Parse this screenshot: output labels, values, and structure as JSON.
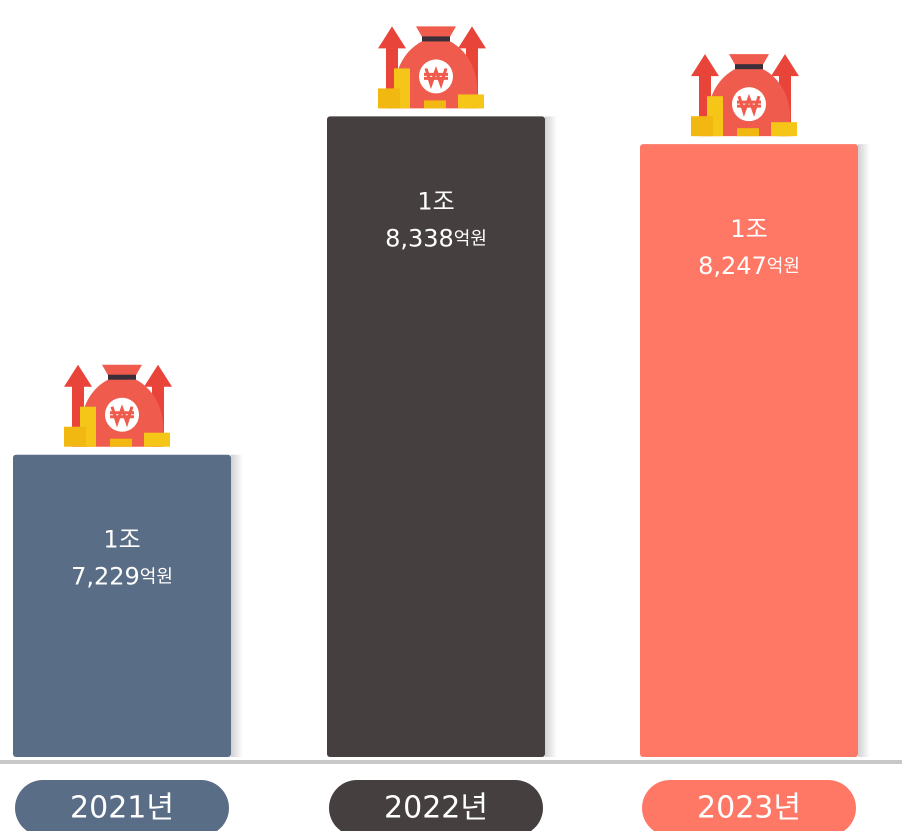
{
  "chart_data": {
    "type": "bar",
    "categories": [
      "2021년",
      "2022년",
      "2023년"
    ],
    "values": [
      17229,
      18338,
      18247
    ],
    "value_labels": [
      "1조 7,229억원",
      "1조 8,338억원",
      "1조 8,247억원"
    ],
    "colors": [
      "#5a6d86",
      "#463f3f",
      "#ff7866"
    ],
    "ylim": [
      16238,
      18500
    ]
  }
}
